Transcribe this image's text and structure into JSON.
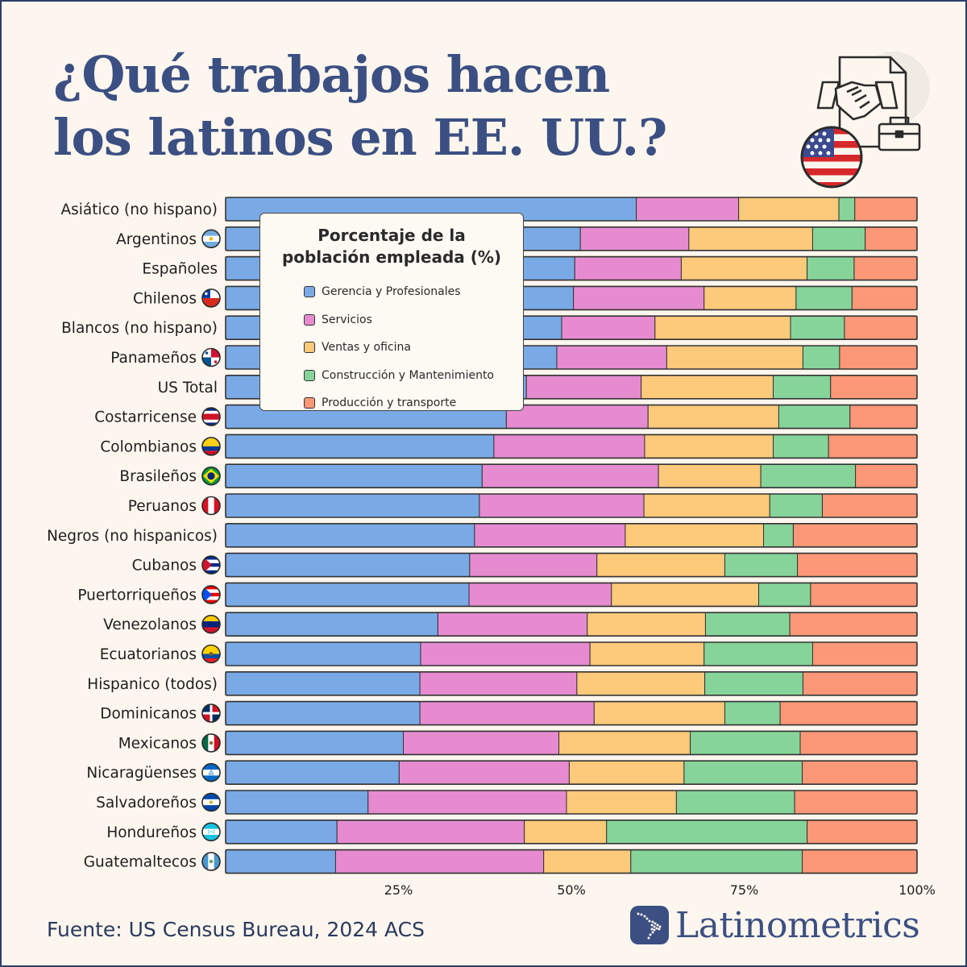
{
  "title": {
    "line1": "¿Qué trabajos hacen",
    "line2": "los latinos en EE. UU.?"
  },
  "legend": {
    "title_line1": "Porcentaje de la",
    "title_line2": "población empleada (%)"
  },
  "source": "Fuente: US Census Bureau, 2024 ACS",
  "brand": "Latinometrics",
  "icons": {
    "top_right": [
      "document-icon",
      "handshake-icon",
      "briefcase-icon",
      "us-flag-icon"
    ],
    "brand": "latin-america-map-icon"
  },
  "chart_data": {
    "type": "bar",
    "orientation": "horizontal",
    "stacked": true,
    "xlim": [
      0,
      100
    ],
    "xticks": [
      25,
      50,
      75,
      100
    ],
    "xtick_labels": [
      "25%",
      "50%",
      "75%",
      "100%"
    ],
    "grid": false,
    "legend_position": "top-left",
    "categories": [
      "Asiático (no hispano)",
      "Argentinos",
      "Españoles",
      "Chilenos",
      "Blancos (no hispano)",
      "Panameños",
      "US Total",
      "Costarricense",
      "Colombianos",
      "Brasileños",
      "Peruanos",
      "Negros (no hispanicos)",
      "Cubanos",
      "Puertorriqueños",
      "Venezolanos",
      "Ecuatorianos",
      "Hispanico (todos)",
      "Dominicanos",
      "Mexicanos",
      "Nicaragüenses",
      "Salvadoreños",
      "Hondureños",
      "Guatemaltecos"
    ],
    "flags": [
      "",
      "argentina",
      "",
      "chile",
      "",
      "panama",
      "",
      "costa-rica",
      "colombia",
      "brazil",
      "peru",
      "",
      "cuba",
      "puerto-rico",
      "venezuela",
      "ecuador",
      "",
      "dominican-republic",
      "mexico",
      "nicaragua",
      "el-salvador",
      "honduras",
      "guatemala"
    ],
    "series": [
      {
        "name": "Gerencia y Profesionales",
        "color": "#7aaae6",
        "values": [
          59.4,
          51.3,
          50.5,
          50.3,
          48.6,
          47.9,
          43.5,
          40.6,
          38.8,
          37.1,
          36.7,
          36.0,
          35.3,
          35.2,
          30.7,
          28.2,
          28.1,
          28.1,
          25.7,
          25.1,
          20.6,
          16.1,
          15.9
        ]
      },
      {
        "name": "Servicios",
        "color": "#e68bd0",
        "values": [
          14.8,
          15.7,
          15.4,
          18.9,
          13.5,
          15.9,
          16.6,
          20.5,
          21.8,
          25.5,
          23.8,
          21.8,
          18.4,
          20.6,
          21.6,
          24.5,
          22.7,
          25.2,
          22.5,
          24.6,
          28.7,
          27.1,
          30.1
        ]
      },
      {
        "name": "Ventas y oficina",
        "color": "#fdc97a",
        "values": [
          14.5,
          17.9,
          18.2,
          13.3,
          19.6,
          19.7,
          19.1,
          18.9,
          18.6,
          14.8,
          18.2,
          20.0,
          18.5,
          21.3,
          17.1,
          16.5,
          18.5,
          18.9,
          19.0,
          16.6,
          15.9,
          11.9,
          12.6
        ]
      },
      {
        "name": "Construcción y Mantenimiento",
        "color": "#86d49a",
        "values": [
          2.3,
          7.6,
          6.8,
          8.1,
          7.8,
          5.3,
          8.3,
          10.3,
          8.0,
          13.7,
          7.6,
          4.3,
          10.5,
          7.5,
          12.2,
          15.7,
          14.2,
          8.0,
          15.9,
          17.1,
          17.1,
          29.0,
          24.8
        ]
      },
      {
        "name": "Producción y transporte",
        "color": "#fc9877",
        "values": [
          9.0,
          7.5,
          9.1,
          9.4,
          10.5,
          11.2,
          12.5,
          9.7,
          12.8,
          8.9,
          13.7,
          17.9,
          17.3,
          15.4,
          18.4,
          15.1,
          16.5,
          19.8,
          16.9,
          16.6,
          17.7,
          15.9,
          16.6
        ]
      }
    ]
  }
}
